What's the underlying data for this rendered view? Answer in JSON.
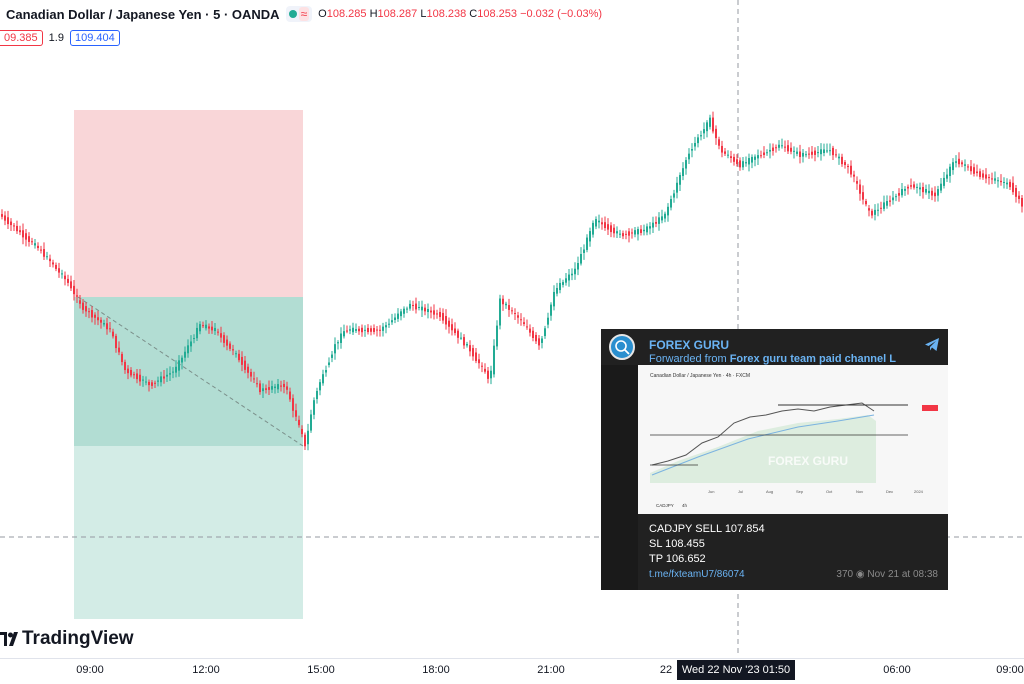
{
  "header": {
    "symbol_title": "Canadian Dollar / Japanese Yen · 5 · OANDA",
    "open_label": "O",
    "open": "108.285",
    "high_label": "H",
    "high": "108.287",
    "low_label": "L",
    "low": "108.238",
    "close_label": "C",
    "close": "108.253",
    "change": "−0.032 (−0.03%)",
    "sell_price": "09.385",
    "spread": "1.9",
    "buy_price": "109.404"
  },
  "brand": {
    "name": "TradingView"
  },
  "time_axis": {
    "ticks": [
      "09:00",
      "12:00",
      "15:00",
      "18:00",
      "21:00",
      "22",
      "06:00",
      "09:00"
    ],
    "crosshair_label": "Wed 22 Nov '23   01:50"
  },
  "colors": {
    "up": "#22ab94",
    "down": "#f23645",
    "stop_zone": "#f9d6d8",
    "profit_zone": "#b2ddd3",
    "target_zone": "#d3ece6",
    "telegram_bg": "#212121",
    "telegram_link": "#6ab3f3"
  },
  "telegram": {
    "channel_name": "FOREX GURU",
    "forwarded_prefix": "Forwarded from ",
    "forwarded_source": "Forex guru team paid channel L",
    "message_line1": "CADJPY SELL 107.854",
    "message_line2": "SL 108.455",
    "message_line3": "TP 106.652",
    "link": "t.me/fxteamU7/86074",
    "views": "370",
    "time": "Nov 21 at 08:38",
    "embedded": {
      "title": "Canadian Dollar / Japanese Yen · 4h · FXCM",
      "symbol": "CADJPY",
      "interval": "4h",
      "watermark": "FOREX GURU",
      "months": [
        "Jun",
        "Jul",
        "Aug",
        "Sep",
        "Oct",
        "Nov",
        "Dec",
        "2024"
      ]
    }
  }
}
